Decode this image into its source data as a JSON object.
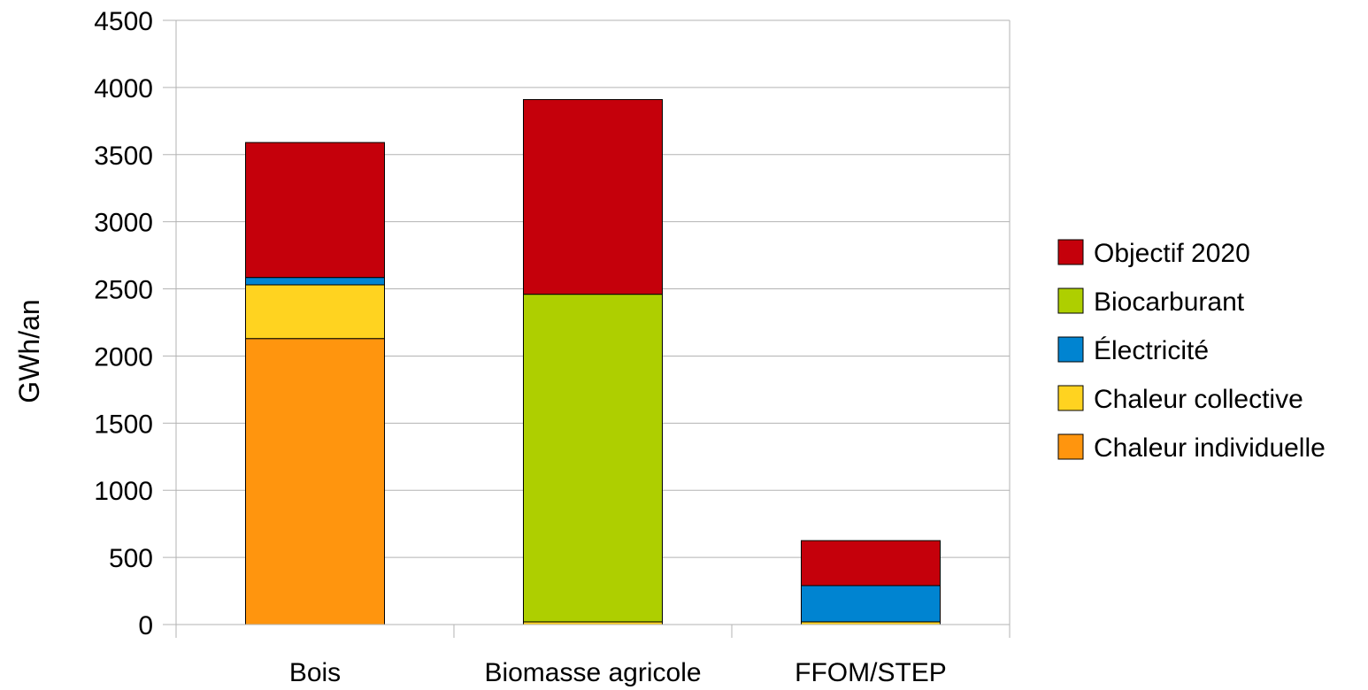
{
  "chart_data": {
    "type": "bar",
    "stacked": true,
    "ylabel": "GWh/an",
    "ylim": [
      0,
      4500
    ],
    "yticks": [
      0,
      500,
      1000,
      1500,
      2000,
      2500,
      3000,
      3500,
      4000,
      4500
    ],
    "grid": true,
    "legend_position": "right",
    "categories": [
      "Bois",
      "Biomasse agricole",
      "FFOM/STEP"
    ],
    "series": [
      {
        "name": "Chaleur individuelle",
        "color": "#ff950e",
        "values": [
          2130,
          0,
          0
        ]
      },
      {
        "name": "Chaleur collective",
        "color": "#ffd320",
        "values": [
          400,
          20,
          20
        ]
      },
      {
        "name": "Électricité",
        "color": "#0084d1",
        "values": [
          55,
          0,
          270
        ]
      },
      {
        "name": "Biocarburant",
        "color": "#aecf00",
        "values": [
          0,
          2440,
          0
        ]
      },
      {
        "name": "Objectif 2020",
        "color": "#c5000b",
        "values": [
          1005,
          1450,
          335
        ]
      }
    ],
    "legend_order": [
      "Objectif 2020",
      "Biocarburant",
      "Électricité",
      "Chaleur collective",
      "Chaleur individuelle"
    ]
  }
}
